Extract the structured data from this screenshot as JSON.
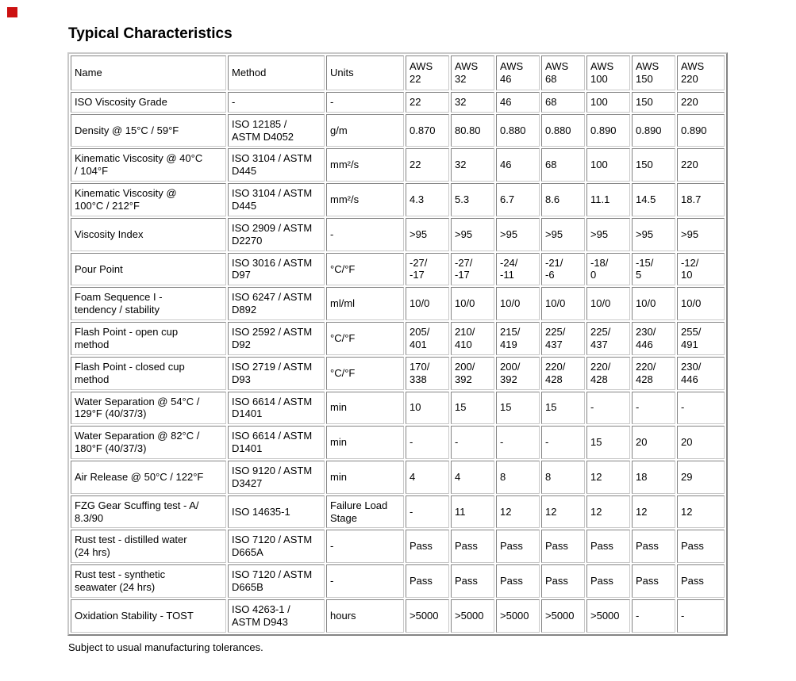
{
  "page": {
    "title": "Typical Characteristics",
    "footnote": "Subject to usual manufacturing tolerances.",
    "placeholder_color": "#cc1111"
  },
  "table": {
    "columns": [
      "Name",
      "Method",
      "Units",
      "AWS\n22",
      "AWS\n32",
      "AWS\n46",
      "AWS\n68",
      "AWS\n100",
      "AWS\n150",
      "AWS\n220"
    ],
    "rows": [
      {
        "name": "ISO Viscosity Grade",
        "method": "-",
        "units": "-",
        "values": [
          "22",
          "32",
          "46",
          "68",
          "100",
          "150",
          "220"
        ]
      },
      {
        "name": "Density @ 15°C / 59°F",
        "method": "ISO 12185 /\nASTM D4052",
        "units": "g/m",
        "values": [
          "0.870",
          "80.80",
          "0.880",
          "0.880",
          "0.890",
          "0.890",
          "0.890"
        ]
      },
      {
        "name": "Kinematic Viscosity @ 40°C\n/ 104°F",
        "method": "ISO 3104 / ASTM\nD445",
        "units": "mm²/s",
        "values": [
          "22",
          "32",
          "46",
          "68",
          "100",
          "150",
          "220"
        ]
      },
      {
        "name": "Kinematic Viscosity @\n100°C / 212°F",
        "method": "ISO 3104 / ASTM\nD445",
        "units": "mm²/s",
        "values": [
          "4.3",
          "5.3",
          "6.7",
          "8.6",
          "11.1",
          "14.5",
          "18.7"
        ]
      },
      {
        "name": "Viscosity Index",
        "method": "ISO 2909 / ASTM\nD2270",
        "units": "-",
        "values": [
          ">95",
          ">95",
          ">95",
          ">95",
          ">95",
          ">95",
          ">95"
        ]
      },
      {
        "name": "Pour Point",
        "method": "ISO 3016 / ASTM\nD97",
        "units": "°C/°F",
        "values": [
          "-27/\n-17",
          "-27/\n-17",
          "-24/\n-11",
          "-21/\n-6",
          "-18/\n0",
          "-15/\n5",
          "-12/\n10"
        ]
      },
      {
        "name": "Foam Sequence I -\ntendency / stability",
        "method": "ISO 6247 / ASTM\nD892",
        "units": "ml/ml",
        "values": [
          "10/0",
          "10/0",
          "10/0",
          "10/0",
          "10/0",
          "10/0",
          "10/0"
        ]
      },
      {
        "name": "Flash Point - open cup\nmethod",
        "method": "ISO 2592 / ASTM\nD92",
        "units": "°C/°F",
        "values": [
          "205/\n401",
          "210/\n410",
          "215/\n419",
          "225/\n437",
          "225/\n437",
          "230/\n446",
          "255/\n491"
        ]
      },
      {
        "name": "Flash Point - closed cup\nmethod",
        "method": "ISO 2719 / ASTM\nD93",
        "units": "°C/°F",
        "values": [
          "170/\n338",
          "200/\n392",
          "200/\n392",
          "220/\n428",
          "220/\n428",
          "220/\n428",
          "230/\n446"
        ]
      },
      {
        "name": "Water Separation @ 54°C /\n129°F (40/37/3)",
        "method": "ISO 6614 / ASTM\nD1401",
        "units": "min",
        "values": [
          "10",
          "15",
          "15",
          "15",
          "-",
          "-",
          "-"
        ]
      },
      {
        "name": "Water Separation @ 82°C /\n180°F (40/37/3)",
        "method": "ISO 6614 / ASTM\nD1401",
        "units": "min",
        "values": [
          "-",
          "-",
          "-",
          "-",
          "15",
          "20",
          "20"
        ]
      },
      {
        "name": "Air Release @ 50°C / 122°F",
        "method": "ISO 9120 / ASTM\nD3427",
        "units": "min",
        "values": [
          "4",
          "4",
          "8",
          "8",
          "12",
          "18",
          "29"
        ]
      },
      {
        "name": "FZG Gear Scuffing test - A/\n8.3/90",
        "method": "ISO 14635-1",
        "units": "Failure Load\nStage",
        "values": [
          "-",
          "11",
          "12",
          "12",
          "12",
          "12",
          "12"
        ]
      },
      {
        "name": "Rust test - distilled water\n(24 hrs)",
        "method": "ISO 7120 / ASTM\nD665A",
        "units": "-",
        "values": [
          "Pass",
          "Pass",
          "Pass",
          "Pass",
          "Pass",
          "Pass",
          "Pass"
        ]
      },
      {
        "name": "Rust test - synthetic\nseawater (24 hrs)",
        "method": "ISO 7120 / ASTM\nD665B",
        "units": "-",
        "values": [
          "Pass",
          "Pass",
          "Pass",
          "Pass",
          "Pass",
          "Pass",
          "Pass"
        ]
      },
      {
        "name": "Oxidation Stability - TOST",
        "method": "ISO 4263-1 /\nASTM D943",
        "units": "hours",
        "values": [
          ">5000",
          ">5000",
          ">5000",
          ">5000",
          ">5000",
          "-",
          "-"
        ]
      }
    ]
  }
}
